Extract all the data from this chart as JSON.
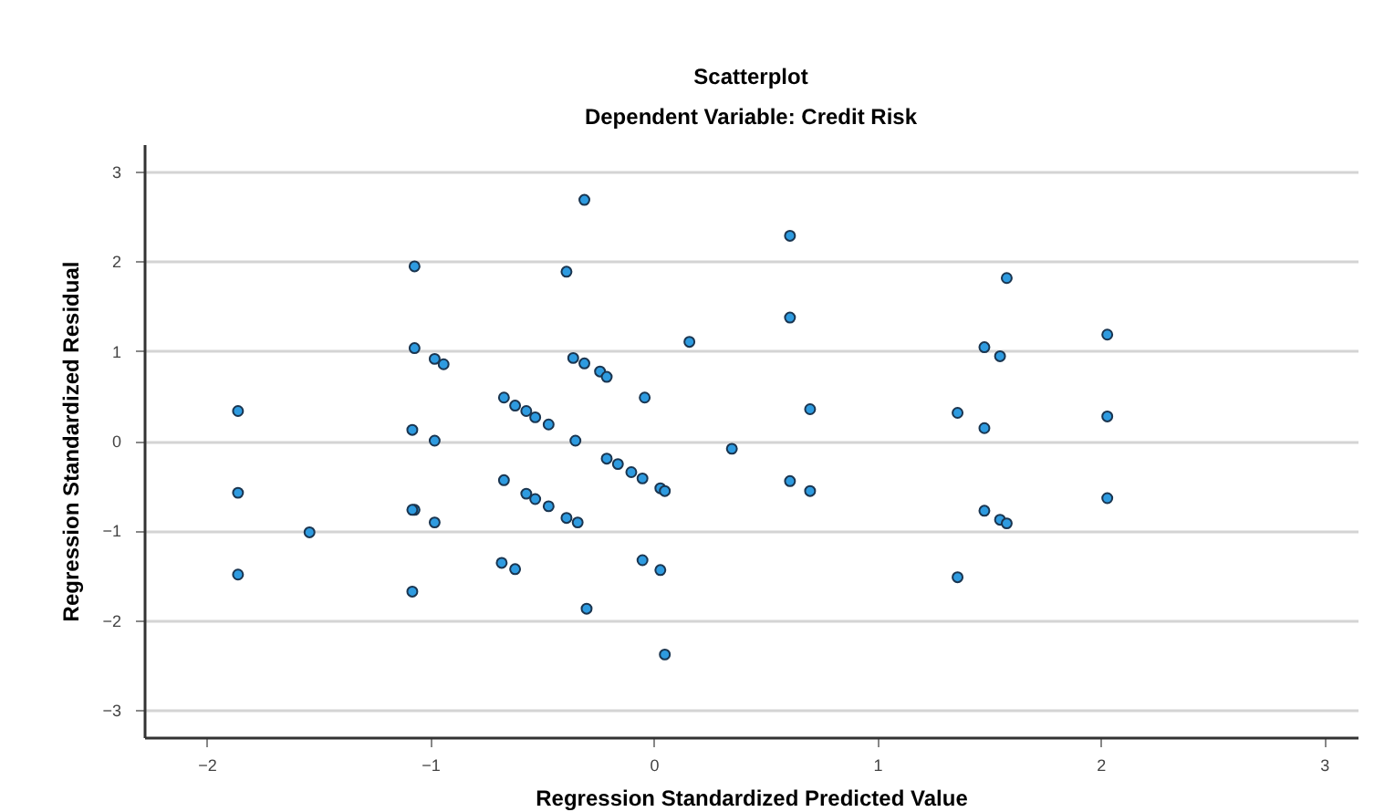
{
  "chart_data": {
    "type": "scatter",
    "title": "Scatterplot",
    "subtitle": "Dependent Variable: Credit Risk",
    "xlabel": "Regression Standardized Predicted Value",
    "ylabel": "Regression Standardized Residual",
    "x": [
      -1.86,
      -1.86,
      -1.86,
      -1.54,
      -1.07,
      -1.07,
      -1.08,
      -1.07,
      -1.08,
      -1.08,
      -0.98,
      -0.94,
      -0.98,
      -0.98,
      -0.67,
      -0.62,
      -0.57,
      -0.53,
      -0.47,
      -0.39,
      -0.31,
      -0.36,
      -0.31,
      -0.24,
      -0.21,
      -0.04,
      0.16,
      -0.35,
      -0.21,
      -0.16,
      -0.1,
      -0.05,
      0.03,
      0.05,
      -0.67,
      -0.57,
      -0.53,
      -0.47,
      -0.39,
      -0.34,
      -0.68,
      -0.62,
      -0.3,
      -0.05,
      0.03,
      0.05,
      0.61,
      0.61,
      1.58,
      1.48,
      1.55,
      2.03,
      0.7,
      1.36,
      1.48,
      2.03,
      0.35,
      0.61,
      0.7,
      1.48,
      1.55,
      1.58,
      2.03,
      1.36
    ],
    "values": [
      0.33,
      -0.58,
      -1.49,
      -1.02,
      1.94,
      1.03,
      0.12,
      -0.77,
      -1.68,
      -0.77,
      0.91,
      0.85,
      0.0,
      -0.91,
      0.48,
      0.39,
      0.33,
      0.26,
      0.18,
      1.88,
      2.68,
      0.92,
      0.86,
      0.77,
      0.71,
      0.48,
      1.1,
      0.0,
      -0.2,
      -0.26,
      -0.35,
      -0.42,
      -0.53,
      -0.56,
      -0.44,
      -0.59,
      -0.65,
      -0.73,
      -0.86,
      -0.91,
      -1.36,
      -1.43,
      -1.87,
      -1.33,
      -1.44,
      -2.38,
      2.28,
      1.37,
      1.81,
      1.04,
      0.94,
      1.18,
      0.35,
      0.31,
      0.14,
      0.27,
      -0.09,
      -0.45,
      -0.56,
      -0.78,
      -0.88,
      -0.92,
      -0.64,
      -1.52
    ],
    "color": "#2e9be0",
    "marker": "circle",
    "xlim": [
      -2.28,
      3.15
    ],
    "xticks": [
      -2,
      -1,
      0,
      1,
      2,
      3
    ],
    "ylim": [
      -3.3,
      3.3
    ],
    "yticks": [
      -3,
      -2,
      -1,
      0,
      1,
      2,
      3
    ],
    "grid": "y"
  }
}
